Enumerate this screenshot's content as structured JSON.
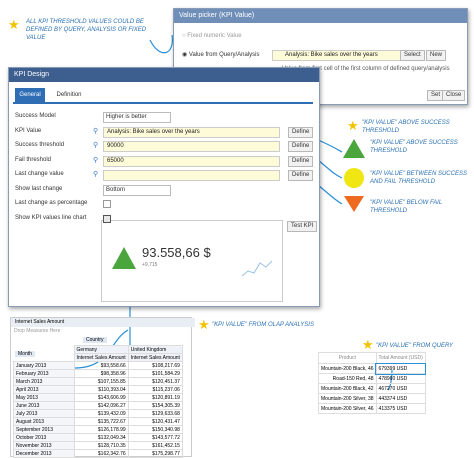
{
  "callouts": {
    "thresholds": "ALL KPI THRESHOLD VALUES COULD BE DEFINED BY QUERY, ANALYSIS OR FIXED VALUE",
    "above_top": "\"KPI VALUE\" ABOVE SUCCESS THRESHOLD",
    "above": "\"KPI VALUE\" ABOVE SUCCESS THRESHOLD",
    "between": "\"KPI VALUE\" BETWEEN SUCCESS AND FAIL THRESHOLD",
    "below": "\"KPI VALUE\" BELOW FAIL THRESHOLD",
    "olap": "\"KPI VALUE\" FROM OLAP ANALYSIS",
    "query": "\"KPI VALUE\" FROM QUERY"
  },
  "value_picker": {
    "title": "Value picker (KPI Value)",
    "option_fixed": "Fixed numeric Value",
    "option_query": "Value from Query/Analysis",
    "field": "Analysis: Bike sales over the years",
    "select": "Select",
    "new": "New",
    "hint": "Value from first cell of the first column of defined query/analysis",
    "set": "Set",
    "close": "Close"
  },
  "kpi_design": {
    "title": "KPI Design",
    "tabs": [
      "General",
      "Definition"
    ],
    "rows": [
      {
        "label": "Success Model",
        "value": "Higher is better",
        "kind": "select"
      },
      {
        "label": "KPI Value",
        "value": "Analysis: Bike sales over the years",
        "kind": "field",
        "button": "Define"
      },
      {
        "label": "Success threshold",
        "value": "90000",
        "kind": "field",
        "button": "Define"
      },
      {
        "label": "Fail threshold",
        "value": "65000",
        "kind": "field",
        "button": "Define"
      },
      {
        "label": "Last change value",
        "value": "",
        "kind": "field",
        "button": "Define"
      },
      {
        "label": "Show last change",
        "value": "Bottom",
        "kind": "select"
      },
      {
        "label": "Last change as percentage",
        "kind": "check",
        "checked": false
      },
      {
        "label": "Show KPI values line chart",
        "kind": "check",
        "checked": true
      }
    ],
    "test": "Test KPI",
    "kpi_value": "93.558,66 $",
    "kpi_change": "+9,715"
  },
  "pivot": {
    "title": "Internet Sales Amount",
    "drop": "Drop Measures Here",
    "country": "Country",
    "month": "Month",
    "columns": [
      "Germany",
      "United Kingdom"
    ],
    "measures": [
      "Internet Sales Amount",
      "Internet Sales Amount"
    ],
    "rows": [
      [
        "January 2013",
        "$93,558.66",
        "$108,217.69"
      ],
      [
        "February 2013",
        "$98,358.96",
        "$101,584.29"
      ],
      [
        "March 2013",
        "$107,155.85",
        "$120,451.37"
      ],
      [
        "April 2013",
        "$110,393.04",
        "$115,237.06"
      ],
      [
        "May 2013",
        "$143,606.99",
        "$120,891.19"
      ],
      [
        "June 2013",
        "$142,096.27",
        "$154,305.39"
      ],
      [
        "July 2013",
        "$139,432.09",
        "$129,633.68"
      ],
      [
        "August 2013",
        "$135,722.67",
        "$120,431.47"
      ],
      [
        "September 2013",
        "$126,178.99",
        "$150,340.98"
      ],
      [
        "October 2013",
        "$132,049.34",
        "$143,577.72"
      ],
      [
        "November 2013",
        "$128,710.35",
        "$161,452.15"
      ],
      [
        "December 2013",
        "$162,342.76",
        "$175,298.77"
      ]
    ]
  },
  "query_table": {
    "headers": [
      "Product",
      "Total Amount (USD)"
    ],
    "rows": [
      [
        "Mountain-200 Black, 46",
        "679399 USD"
      ],
      [
        "Road-150 Red, 48",
        "478960 USD"
      ],
      [
        "Mountain-200 Black, 42",
        "467270 USD"
      ],
      [
        "Mountain-200 Silver, 38",
        "443374 USD"
      ],
      [
        "Mountain-200 Silver, 46",
        "413375 USD"
      ]
    ]
  }
}
